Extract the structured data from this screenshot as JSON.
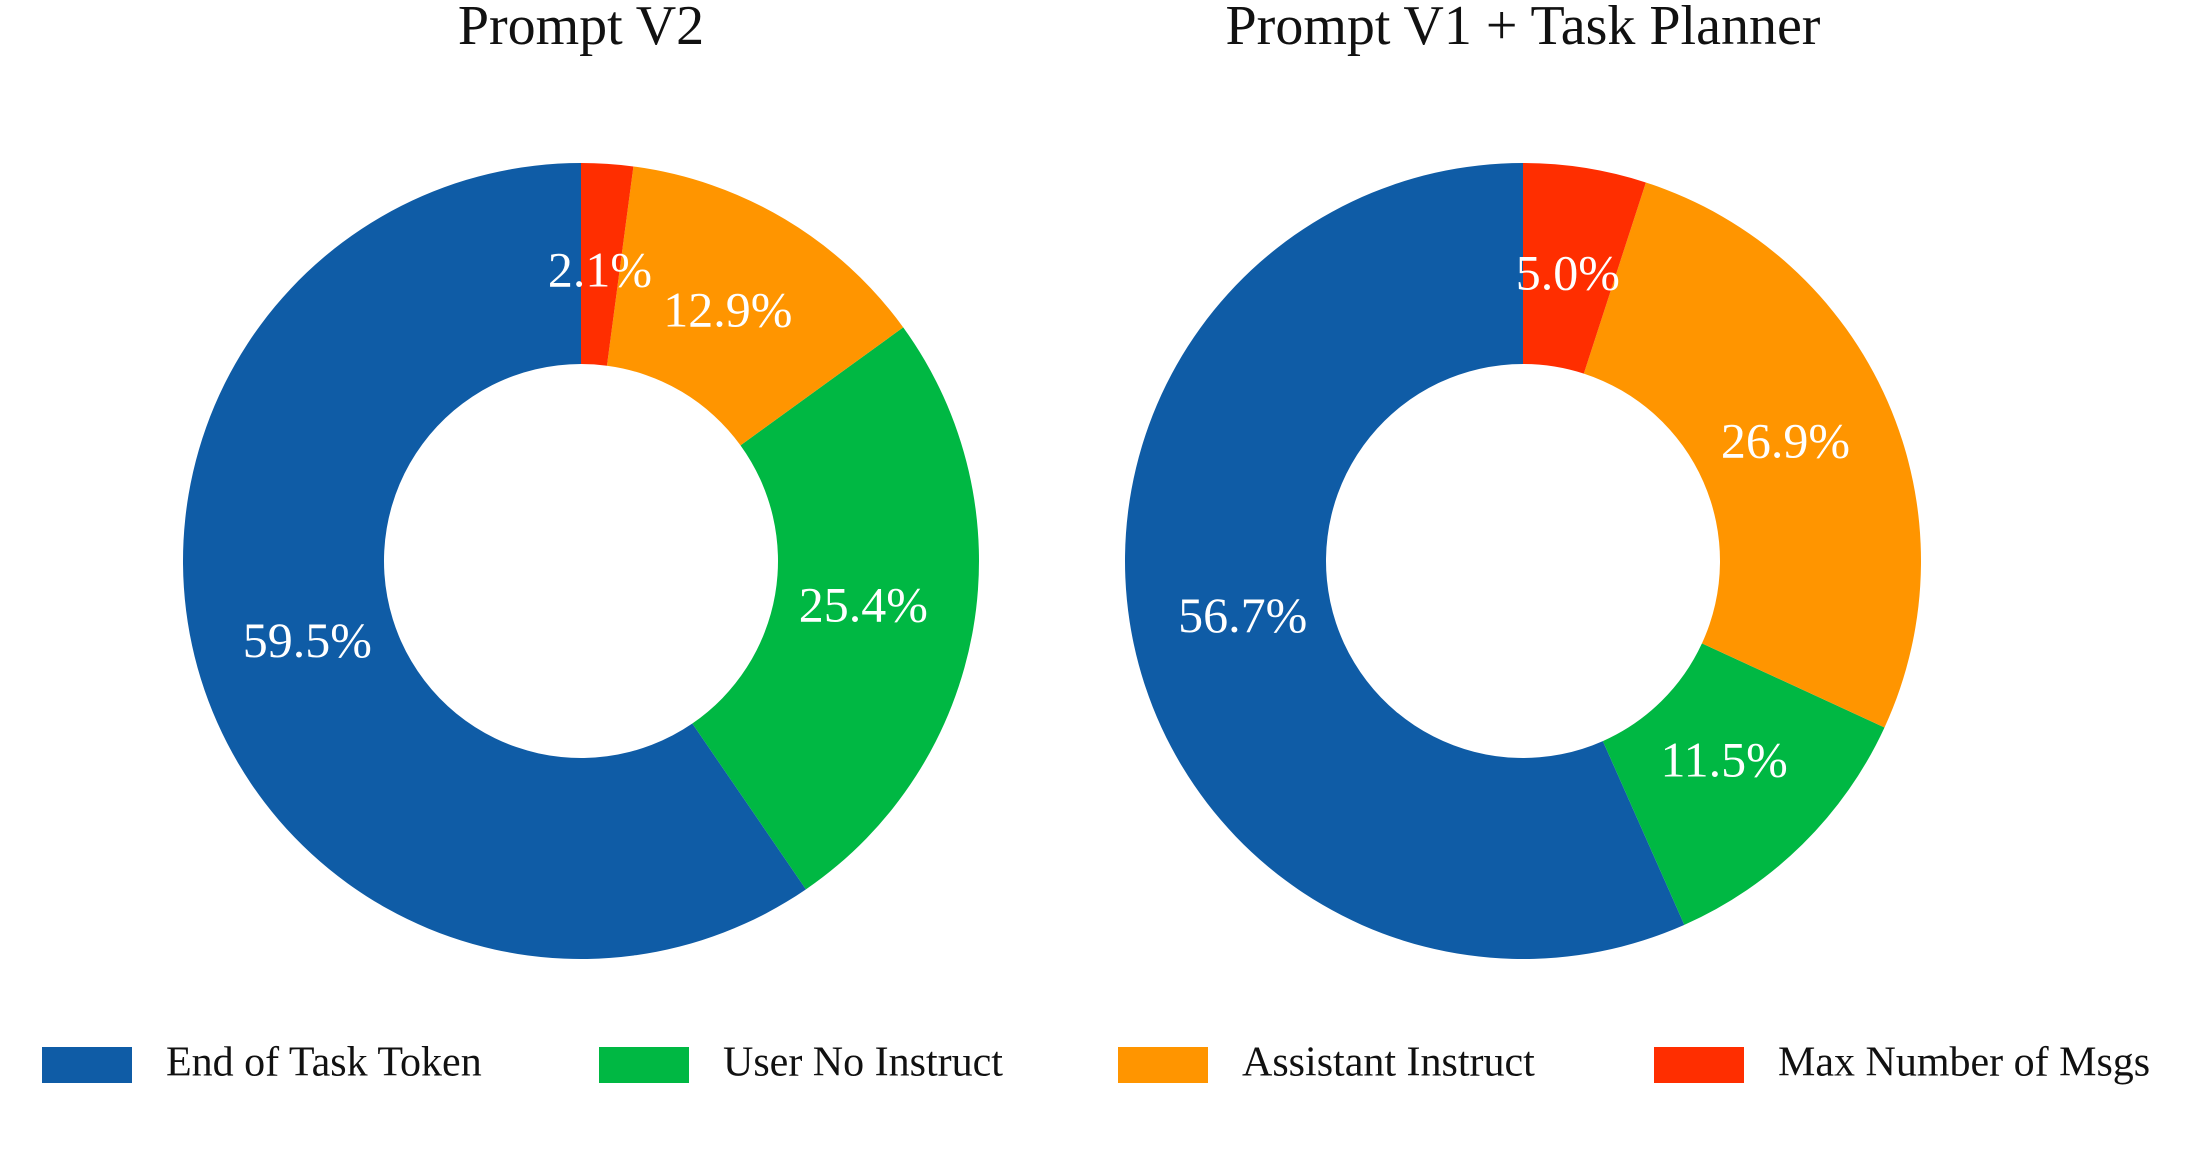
{
  "chart_data": [
    {
      "type": "pie",
      "title": "Prompt V2",
      "categories": [
        "End of Task Token",
        "User No Instruct",
        "Assistant Instruct",
        "Max Number of Msgs"
      ],
      "values": [
        59.5,
        25.4,
        12.9,
        2.1
      ],
      "value_labels": [
        "59.5%",
        "25.4%",
        "12.9%",
        "2.1%"
      ],
      "colors": [
        "#0f5ca6",
        "#00b843",
        "#ff9500",
        "#ff2e00"
      ]
    },
    {
      "type": "pie",
      "title": "Prompt V1 + Task Planner",
      "categories": [
        "End of Task Token",
        "User No Instruct",
        "Assistant Instruct",
        "Max Number of Msgs"
      ],
      "values": [
        56.7,
        11.5,
        26.9,
        5.0
      ],
      "value_labels": [
        "56.7%",
        "11.5%",
        "26.9%",
        "5.0%"
      ],
      "colors": [
        "#0f5ca6",
        "#00b843",
        "#ff9500",
        "#ff2e00"
      ]
    }
  ]
}
